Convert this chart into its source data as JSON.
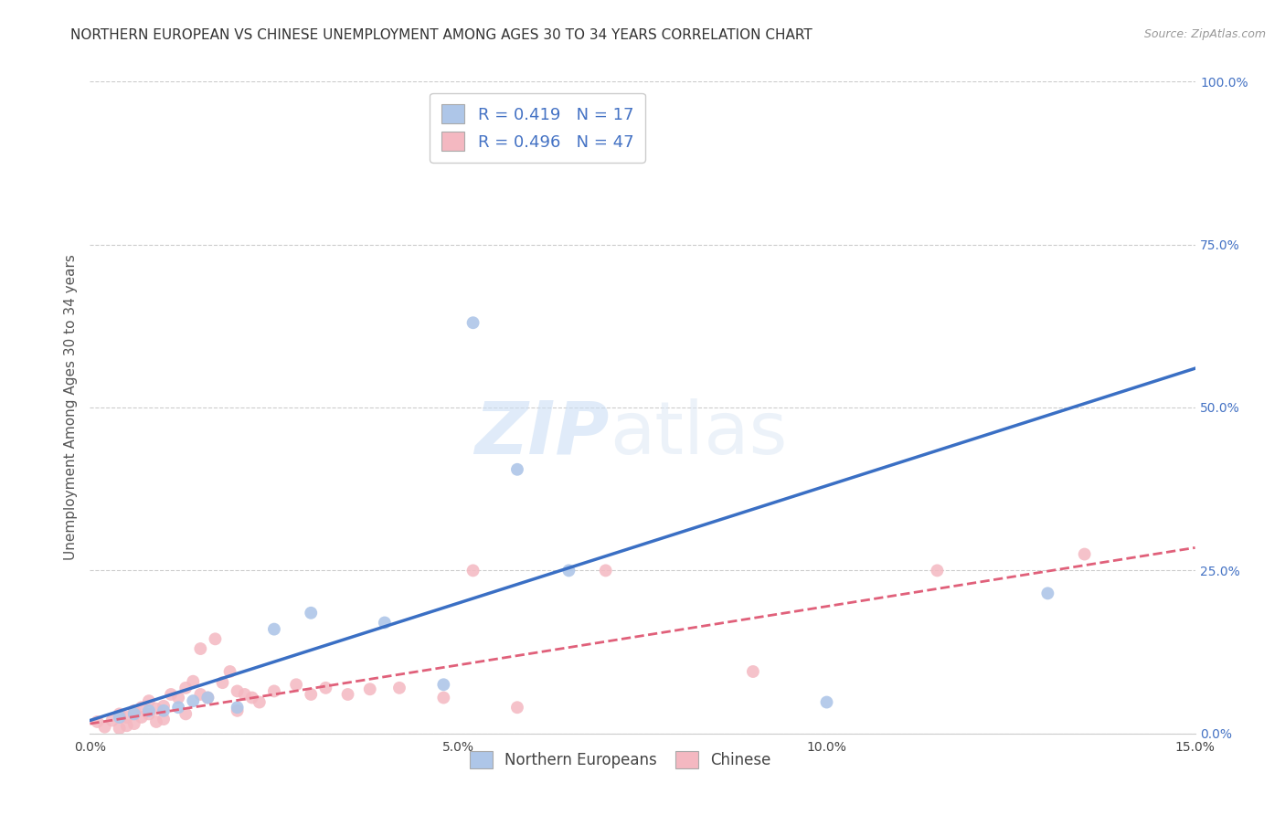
{
  "title": "NORTHERN EUROPEAN VS CHINESE UNEMPLOYMENT AMONG AGES 30 TO 34 YEARS CORRELATION CHART",
  "source": "Source: ZipAtlas.com",
  "ylabel": "Unemployment Among Ages 30 to 34 years",
  "xlim": [
    0.0,
    0.15
  ],
  "ylim": [
    0.0,
    1.0
  ],
  "xticks": [
    0.0,
    0.05,
    0.1,
    0.15
  ],
  "xticklabels": [
    "0.0%",
    "5.0%",
    "10.0%",
    "15.0%"
  ],
  "yticks_right": [
    0.0,
    0.25,
    0.5,
    0.75,
    1.0
  ],
  "yticklabels_right": [
    "0.0%",
    "25.0%",
    "50.0%",
    "75.0%",
    "100.0%"
  ],
  "blue_R": 0.419,
  "blue_N": 17,
  "pink_R": 0.496,
  "pink_N": 47,
  "blue_color": "#aec6e8",
  "blue_line_color": "#3a6fc4",
  "pink_color": "#f4b8c1",
  "pink_line_color": "#e0607a",
  "watermark_zip": "ZIP",
  "watermark_atlas": "atlas",
  "blue_line_x": [
    0.0,
    0.15
  ],
  "blue_line_y": [
    0.02,
    0.56
  ],
  "pink_line_x": [
    0.0,
    0.15
  ],
  "pink_line_y": [
    0.015,
    0.285
  ],
  "blue_scatter_x": [
    0.004,
    0.006,
    0.008,
    0.01,
    0.012,
    0.014,
    0.016,
    0.02,
    0.025,
    0.03,
    0.04,
    0.048,
    0.052,
    0.058,
    0.065,
    0.1,
    0.13
  ],
  "blue_scatter_y": [
    0.025,
    0.03,
    0.035,
    0.035,
    0.04,
    0.05,
    0.055,
    0.04,
    0.16,
    0.185,
    0.17,
    0.075,
    0.63,
    0.405,
    0.25,
    0.048,
    0.215
  ],
  "pink_scatter_x": [
    0.001,
    0.002,
    0.003,
    0.004,
    0.004,
    0.005,
    0.005,
    0.006,
    0.006,
    0.007,
    0.007,
    0.008,
    0.008,
    0.009,
    0.009,
    0.01,
    0.01,
    0.011,
    0.012,
    0.013,
    0.013,
    0.014,
    0.015,
    0.015,
    0.016,
    0.017,
    0.018,
    0.019,
    0.02,
    0.02,
    0.021,
    0.022,
    0.023,
    0.025,
    0.028,
    0.03,
    0.032,
    0.035,
    0.038,
    0.042,
    0.048,
    0.052,
    0.058,
    0.07,
    0.09,
    0.115,
    0.135
  ],
  "pink_scatter_y": [
    0.018,
    0.01,
    0.02,
    0.03,
    0.008,
    0.025,
    0.012,
    0.035,
    0.015,
    0.04,
    0.025,
    0.05,
    0.03,
    0.038,
    0.018,
    0.042,
    0.022,
    0.06,
    0.055,
    0.07,
    0.03,
    0.08,
    0.06,
    0.13,
    0.055,
    0.145,
    0.078,
    0.095,
    0.065,
    0.035,
    0.06,
    0.055,
    0.048,
    0.065,
    0.075,
    0.06,
    0.07,
    0.06,
    0.068,
    0.07,
    0.055,
    0.25,
    0.04,
    0.25,
    0.095,
    0.25,
    0.275
  ],
  "background_color": "#ffffff",
  "grid_color": "#cccccc",
  "title_fontsize": 11,
  "axis_label_fontsize": 11,
  "tick_fontsize": 10,
  "dot_size": 100
}
